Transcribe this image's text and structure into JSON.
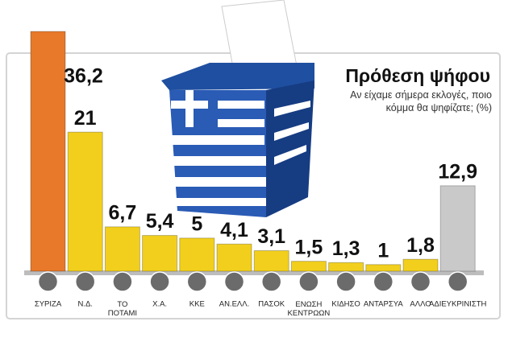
{
  "chart_data": {
    "type": "bar",
    "title": "Πρόθεση ψήφου",
    "subtitle": "Αν είχαμε σήμερα εκλογές, ποιο κόμμα θα ψηφίζατε; (%)",
    "categories": [
      "ΣΥΡΙΖΑ",
      "Ν.Δ.",
      "ΤΟ ΠΟΤΑΜΙ",
      "Χ.Α.",
      "ΚΚΕ",
      "ΑΝ.ΕΛΛ.",
      "ΠΑΣΟΚ",
      "ΕΝΩΣΗ ΚΕΝΤΡΩΩΝ",
      "ΚΙΔΗΣΟ",
      "ΑΝΤΑΡΣΥΑ",
      "ΑΛΛΟ",
      "ΑΔΙΕΥΚΡΙΝΙΣΤΗ"
    ],
    "values": [
      36.2,
      21,
      6.7,
      5.4,
      5,
      4.1,
      3.1,
      1.5,
      1.3,
      1,
      1.8,
      12.9
    ],
    "value_labels": [
      "36,2",
      "21",
      "6,7",
      "5,4",
      "5",
      "4,1",
      "3,1",
      "1,5",
      "1,3",
      "1",
      "1,8",
      "12,9"
    ],
    "colors": [
      "#e8782a",
      "#f2cf1c",
      "#f2cf1c",
      "#f2cf1c",
      "#f2cf1c",
      "#f2cf1c",
      "#f2cf1c",
      "#f2cf1c",
      "#f2cf1c",
      "#f2cf1c",
      "#f2cf1c",
      "#c9c9c9"
    ]
  }
}
